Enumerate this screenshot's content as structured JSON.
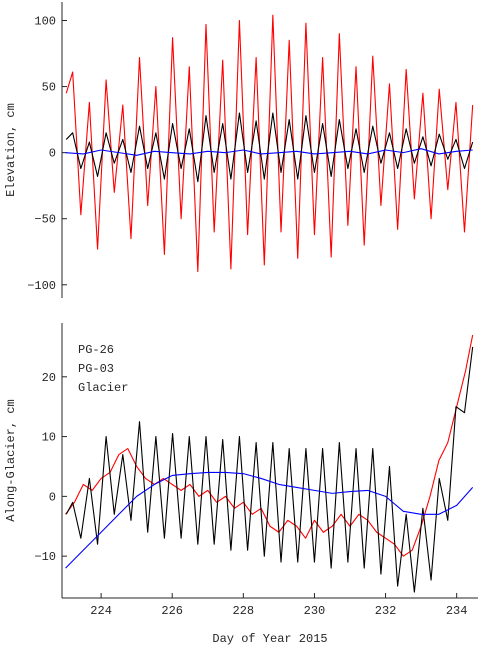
{
  "chart_data": [
    {
      "type": "line",
      "ylabel": "Elevation, cm",
      "xlim": [
        222.9,
        234.6
      ],
      "ylim": [
        -110,
        114
      ],
      "yticks": [
        {
          "value": -100,
          "label": "−100"
        },
        {
          "value": -50,
          "label": "−50"
        },
        0,
        50,
        100
      ],
      "series": [
        {
          "color": "#ff0000",
          "x": [
            223.02,
            223.2,
            223.43,
            223.67,
            223.9,
            224.14,
            224.37,
            224.61,
            224.84,
            225.08,
            225.31,
            225.54,
            225.78,
            226.01,
            226.25,
            226.48,
            226.72,
            226.95,
            227.18,
            227.42,
            227.65,
            227.89,
            228.12,
            228.36,
            228.59,
            228.83,
            229.06,
            229.29,
            229.53,
            229.76,
            230.0,
            230.23,
            230.47,
            230.7,
            230.94,
            231.17,
            231.4,
            231.64,
            231.87,
            232.11,
            232.34,
            232.58,
            232.81,
            233.05,
            233.28,
            233.51,
            233.75,
            233.98,
            234.22,
            234.45
          ],
          "values": [
            45,
            61,
            -47,
            38,
            -73,
            55,
            -30,
            36,
            -65,
            72,
            -40,
            50,
            -77,
            87,
            -50,
            65,
            -90,
            97,
            -60,
            70,
            -88,
            100,
            -62,
            72,
            -85,
            104,
            -60,
            85,
            -80,
            98,
            -62,
            72,
            -79,
            90,
            -55,
            65,
            -70,
            73,
            -40,
            52,
            -58,
            63,
            -35,
            45,
            -50,
            48,
            -28,
            38,
            -60,
            36
          ]
        },
        {
          "color": "#000000",
          "x": [
            223.02,
            223.2,
            223.43,
            223.67,
            223.9,
            224.14,
            224.37,
            224.61,
            224.84,
            225.08,
            225.31,
            225.54,
            225.78,
            226.01,
            226.25,
            226.48,
            226.72,
            226.95,
            227.18,
            227.42,
            227.65,
            227.89,
            228.12,
            228.36,
            228.59,
            228.83,
            229.06,
            229.29,
            229.53,
            229.76,
            230.0,
            230.23,
            230.47,
            230.7,
            230.94,
            231.17,
            231.4,
            231.64,
            231.87,
            232.11,
            232.34,
            232.58,
            232.81,
            233.05,
            233.28,
            233.51,
            233.75,
            233.98,
            234.22,
            234.45
          ],
          "values": [
            10,
            15,
            -12,
            8,
            -18,
            15,
            -8,
            10,
            -15,
            20,
            -12,
            15,
            -20,
            22,
            -12,
            18,
            -22,
            28,
            -15,
            22,
            -20,
            30,
            -15,
            24,
            -20,
            30,
            -15,
            25,
            -20,
            28,
            -15,
            22,
            -18,
            25,
            -12,
            18,
            -15,
            20,
            -8,
            15,
            -12,
            18,
            -8,
            12,
            -10,
            14,
            -5,
            10,
            -12,
            8
          ]
        },
        {
          "color": "#0000ff",
          "x": [
            223.0,
            223.5,
            224.0,
            224.5,
            225.0,
            225.5,
            226.0,
            226.5,
            227.0,
            227.5,
            228.0,
            228.5,
            229.0,
            229.5,
            230.0,
            230.5,
            231.0,
            231.5,
            232.0,
            232.5,
            233.0,
            233.5,
            234.0,
            234.45
          ],
          "values": [
            0,
            -1,
            2,
            0,
            -2,
            1,
            0,
            -1,
            1,
            0,
            2,
            -1,
            0,
            1,
            -1,
            0,
            1,
            -1,
            2,
            0,
            3,
            -1,
            1,
            2
          ]
        }
      ]
    },
    {
      "type": "line",
      "ylabel": "Along-Glacier, cm",
      "xlabel": "Day of Year 2015",
      "legend": "upper left",
      "xlim": [
        222.9,
        234.6
      ],
      "ylim": [
        -17,
        29
      ],
      "xticks": [
        224,
        226,
        228,
        230,
        232,
        234
      ],
      "yticks": [
        {
          "value": -10,
          "label": "−10"
        },
        0,
        10,
        20
      ],
      "series": [
        {
          "name": "PG-26",
          "color": "#ff0000",
          "x": [
            223.0,
            223.25,
            223.5,
            223.75,
            224.0,
            224.25,
            224.5,
            224.75,
            225.0,
            225.25,
            225.5,
            225.75,
            226.0,
            226.25,
            226.5,
            226.75,
            227.0,
            227.25,
            227.5,
            227.75,
            228.0,
            228.25,
            228.5,
            228.75,
            229.0,
            229.25,
            229.5,
            229.75,
            230.0,
            230.25,
            230.5,
            230.75,
            231.0,
            231.25,
            231.5,
            231.75,
            232.0,
            232.25,
            232.5,
            232.75,
            233.0,
            233.25,
            233.5,
            233.75,
            234.0,
            234.25,
            234.45
          ],
          "values": [
            -3,
            -1,
            2,
            1,
            3,
            4,
            7,
            8,
            5,
            3,
            2,
            3,
            2,
            1,
            2,
            0,
            1,
            -1,
            0,
            -2,
            -1,
            -3,
            -2,
            -5,
            -6,
            -4,
            -5,
            -7,
            -4,
            -6,
            -5,
            -3,
            -5,
            -3,
            -4,
            -6,
            -7,
            -8,
            -10,
            -9,
            -5,
            0,
            6,
            9,
            15,
            21,
            27
          ]
        },
        {
          "name": "PG-03",
          "color": "#000000",
          "x": [
            223.02,
            223.2,
            223.43,
            223.67,
            223.9,
            224.14,
            224.37,
            224.61,
            224.84,
            225.08,
            225.31,
            225.54,
            225.78,
            226.01,
            226.25,
            226.48,
            226.72,
            226.95,
            227.18,
            227.42,
            227.65,
            227.89,
            228.12,
            228.36,
            228.59,
            228.83,
            229.06,
            229.29,
            229.53,
            229.76,
            230.0,
            230.23,
            230.47,
            230.7,
            230.94,
            231.17,
            231.4,
            231.64,
            231.87,
            232.11,
            232.34,
            232.58,
            232.81,
            233.05,
            233.28,
            233.51,
            233.75,
            233.98,
            234.22,
            234.45
          ],
          "values": [
            -3,
            -1,
            -7,
            3,
            -8,
            10,
            -3,
            7,
            -4,
            12.5,
            -6,
            10,
            -7,
            10.5,
            -7,
            10,
            -8,
            10,
            -8,
            9.5,
            -9,
            10,
            -9,
            9,
            -10,
            9,
            -11,
            8,
            -11,
            8,
            -11,
            8,
            -12,
            9,
            -11,
            8,
            -12,
            8,
            -13,
            5,
            -15,
            -3,
            -16,
            -2,
            -14,
            3,
            -4,
            15,
            14,
            25
          ]
        },
        {
          "name": "Glacier",
          "color": "#0000ff",
          "x": [
            223.0,
            223.5,
            224.0,
            224.5,
            225.0,
            225.5,
            226.0,
            226.5,
            227.0,
            227.5,
            228.0,
            228.5,
            229.0,
            229.5,
            230.0,
            230.5,
            231.0,
            231.5,
            232.0,
            232.5,
            233.0,
            233.5,
            234.0,
            234.45
          ],
          "values": [
            -12,
            -9,
            -6,
            -3,
            0,
            2,
            3.5,
            3.8,
            4,
            4,
            3.8,
            3,
            2,
            1.5,
            1,
            0.5,
            0.8,
            1,
            0,
            -2.5,
            -3,
            -3,
            -1.5,
            1.5
          ]
        }
      ]
    }
  ]
}
